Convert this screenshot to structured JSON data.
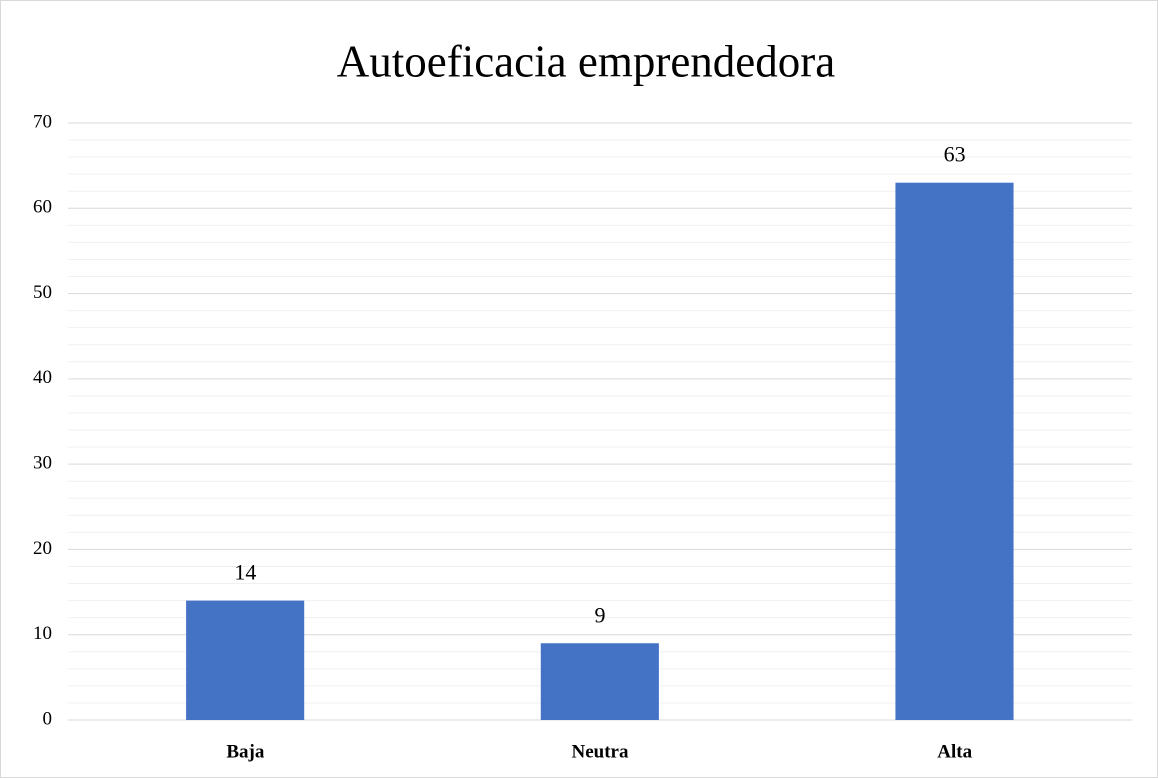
{
  "chart_data": {
    "type": "bar",
    "title": "Autoeficacia emprendedora",
    "categories": [
      "Baja",
      "Neutra",
      "Alta"
    ],
    "values": [
      14,
      9,
      63
    ],
    "color": "#4472c4",
    "ylim": [
      0,
      70
    ],
    "yticks": [
      0,
      10,
      20,
      30,
      40,
      50,
      60,
      70
    ],
    "minor_yticks": [
      2,
      4,
      6,
      8,
      12,
      14,
      16,
      18,
      22,
      24,
      26,
      28,
      32,
      34,
      36,
      38,
      42,
      44,
      46,
      48,
      52,
      54,
      56,
      58,
      62,
      64,
      66,
      68
    ],
    "grid": true,
    "minor_grid": true
  }
}
